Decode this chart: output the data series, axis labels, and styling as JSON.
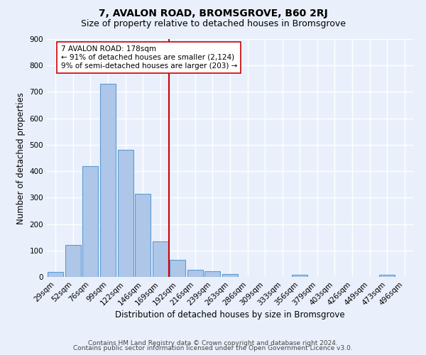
{
  "title": "7, AVALON ROAD, BROMSGROVE, B60 2RJ",
  "subtitle": "Size of property relative to detached houses in Bromsgrove",
  "xlabel": "Distribution of detached houses by size in Bromsgrove",
  "ylabel": "Number of detached properties",
  "footnote1": "Contains HM Land Registry data © Crown copyright and database right 2024.",
  "footnote2": "Contains public sector information licensed under the Open Government Licence v3.0.",
  "bin_labels": [
    "29sqm",
    "52sqm",
    "76sqm",
    "99sqm",
    "122sqm",
    "146sqm",
    "169sqm",
    "192sqm",
    "216sqm",
    "239sqm",
    "263sqm",
    "286sqm",
    "309sqm",
    "333sqm",
    "356sqm",
    "379sqm",
    "403sqm",
    "426sqm",
    "449sqm",
    "473sqm",
    "496sqm"
  ],
  "bar_heights": [
    20,
    122,
    418,
    730,
    480,
    315,
    133,
    65,
    27,
    22,
    11,
    0,
    0,
    0,
    8,
    0,
    0,
    0,
    0,
    8,
    0
  ],
  "bar_color": "#aec6e8",
  "bar_edge_color": "#5b9bd5",
  "vline_x_idx": 7,
  "vline_color": "#cc0000",
  "annotation_text": "7 AVALON ROAD: 178sqm\n← 91% of detached houses are smaller (2,124)\n9% of semi-detached houses are larger (203) →",
  "annotation_box_color": "#ffffff",
  "annotation_box_edge": "#cc0000",
  "ylim": [
    0,
    900
  ],
  "yticks": [
    0,
    100,
    200,
    300,
    400,
    500,
    600,
    700,
    800,
    900
  ],
  "background_color": "#eaf0fb",
  "plot_bg_color": "#eaf0fb",
  "grid_color": "#ffffff",
  "title_fontsize": 10,
  "subtitle_fontsize": 9,
  "axis_label_fontsize": 8.5,
  "tick_fontsize": 7.5,
  "annotation_fontsize": 7.5,
  "footnote_fontsize": 6.5
}
